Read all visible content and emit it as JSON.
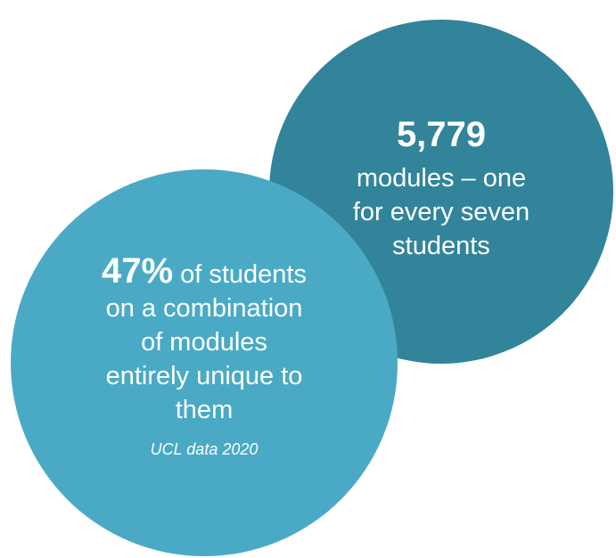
{
  "stats": {
    "modules": {
      "number": "5,779",
      "text_line1": "modules – one",
      "text_line2": "for every seven",
      "text_line3": "students",
      "color": "#32849b"
    },
    "unique": {
      "number": "47%",
      "text_line1": " of students",
      "text_line2": "on a combination",
      "text_line3": "of modules",
      "text_line4": "entirely unique to",
      "text_line5": "them",
      "source": "UCL data 2020",
      "color": "#4aaac5"
    }
  }
}
